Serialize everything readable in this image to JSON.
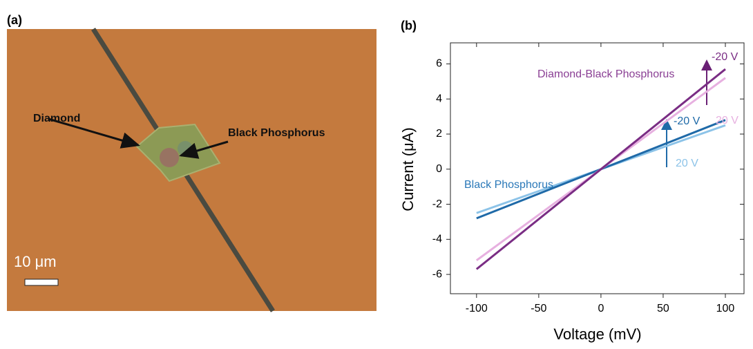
{
  "panel_a": {
    "label": "(a)",
    "annotations": [
      "Diamond",
      "Black Phosphorus"
    ],
    "scale_bar": "10 μm"
  },
  "chart_data": {
    "type": "line",
    "label": "(b)",
    "x_label": "Voltage (mV)",
    "y_label": "Current (μA)",
    "xlim": [
      -121,
      115
    ],
    "ylim": [
      -7.1,
      7.2
    ],
    "xticks": [
      -100,
      -50,
      0,
      50,
      100
    ],
    "yticks": [
      -6,
      -4,
      -2,
      0,
      2,
      4,
      6
    ],
    "groups": [
      {
        "label": "Black Phosphorus",
        "series": [
          {
            "name": "-20 V",
            "color": "#1f6aa8",
            "x": [
              -100,
              0,
              100
            ],
            "values": [
              -2.8,
              0,
              2.8
            ]
          },
          {
            "name": "20 V",
            "color": "#8cc3e8",
            "x": [
              -100,
              0,
              100
            ],
            "values": [
              -2.5,
              0,
              2.5
            ]
          }
        ]
      },
      {
        "label": "Diamond-Black Phosphorus",
        "series": [
          {
            "name": "-20 V",
            "color": "#7a2d84",
            "x": [
              -100,
              0,
              100
            ],
            "values": [
              -5.7,
              0,
              5.7
            ]
          },
          {
            "name": "20 V",
            "color": "#e7b0e0",
            "x": [
              -100,
              0,
              100
            ],
            "values": [
              -5.2,
              0,
              5.2
            ]
          }
        ]
      }
    ]
  }
}
